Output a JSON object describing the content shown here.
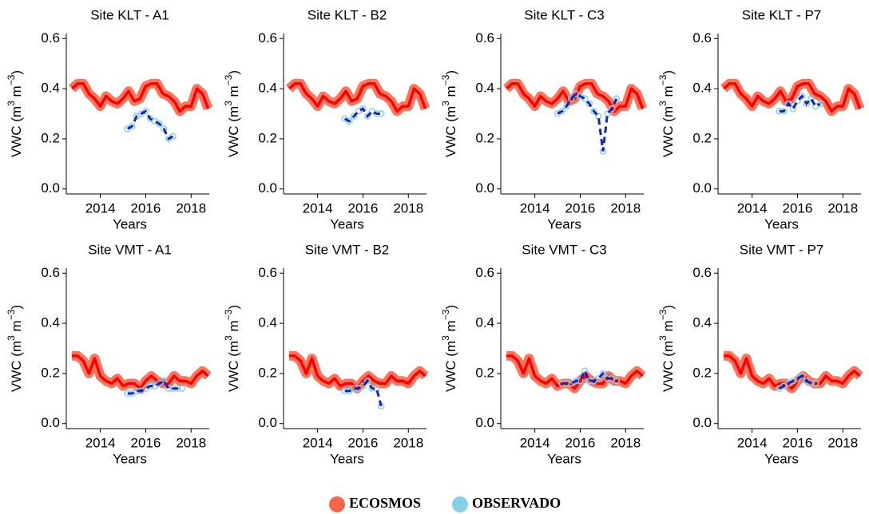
{
  "chart_data": [
    {
      "type": "line",
      "title": "Site KLT - A1",
      "xlabel": "Years",
      "ylabel": [
        "VWC (m",
        "3",
        " m",
        "−3",
        ")"
      ],
      "xlim": [
        2012.5,
        2018.8
      ],
      "xticks": [
        2014,
        2016,
        2018
      ],
      "ylim": [
        -0.02,
        0.62
      ],
      "yticks": [
        {
          "value": 0,
          "label": "0.0"
        },
        0.2,
        0.4,
        0.6
      ],
      "series": [
        {
          "name": "ECOSMOS",
          "color": "#f4664c",
          "line_color": "#ff0000",
          "x": [
            2012.75,
            2013,
            2013.25,
            2013.5,
            2013.75,
            2014,
            2014.25,
            2014.5,
            2014.75,
            2015,
            2015.25,
            2015.5,
            2015.75,
            2016,
            2016.25,
            2016.5,
            2016.75,
            2017,
            2017.25,
            2017.5,
            2017.75,
            2018,
            2018.25,
            2018.5,
            2018.75
          ],
          "values": [
            0.4,
            0.42,
            0.42,
            0.38,
            0.36,
            0.33,
            0.37,
            0.35,
            0.34,
            0.36,
            0.39,
            0.35,
            0.36,
            0.41,
            0.42,
            0.42,
            0.38,
            0.37,
            0.35,
            0.31,
            0.33,
            0.33,
            0.4,
            0.38,
            0.32
          ]
        },
        {
          "name": "OBSERVADO",
          "color": "#87ceeb",
          "line_color": "#1a23b0",
          "x": [
            2015.2,
            2015.4,
            2015.6,
            2015.8,
            2016,
            2016.2,
            2016.4,
            2016.6,
            2016.8,
            2017,
            2017.2
          ],
          "values": [
            0.24,
            0.25,
            0.29,
            0.3,
            0.31,
            0.28,
            0.27,
            0.26,
            0.24,
            0.2,
            0.21
          ]
        }
      ]
    },
    {
      "type": "line",
      "title": "Site KLT - B2",
      "xlabel": "Years",
      "ylabel": [
        "VWC (m",
        "3",
        " m",
        "−3",
        ")"
      ],
      "xlim": [
        2012.5,
        2018.8
      ],
      "xticks": [
        2014,
        2016,
        2018
      ],
      "ylim": [
        -0.02,
        0.62
      ],
      "yticks": [
        {
          "value": 0,
          "label": "0.0"
        },
        0.2,
        0.4,
        0.6
      ],
      "series": [
        {
          "name": "ECOSMOS",
          "color": "#f4664c",
          "line_color": "#ff0000",
          "x": [
            2012.75,
            2013,
            2013.25,
            2013.5,
            2013.75,
            2014,
            2014.25,
            2014.5,
            2014.75,
            2015,
            2015.25,
            2015.5,
            2015.75,
            2016,
            2016.25,
            2016.5,
            2016.75,
            2017,
            2017.25,
            2017.5,
            2017.75,
            2018,
            2018.25,
            2018.5,
            2018.75
          ],
          "values": [
            0.4,
            0.42,
            0.42,
            0.38,
            0.36,
            0.33,
            0.37,
            0.35,
            0.34,
            0.36,
            0.39,
            0.35,
            0.36,
            0.41,
            0.42,
            0.42,
            0.38,
            0.37,
            0.35,
            0.31,
            0.33,
            0.33,
            0.4,
            0.38,
            0.32
          ]
        },
        {
          "name": "OBSERVADO",
          "color": "#87ceeb",
          "line_color": "#1a23b0",
          "x": [
            2015.2,
            2015.4,
            2015.6,
            2015.8,
            2016,
            2016.2,
            2016.4,
            2016.6,
            2016.8
          ],
          "values": [
            0.28,
            0.27,
            0.29,
            0.31,
            0.32,
            0.29,
            0.31,
            0.3,
            0.3
          ]
        }
      ]
    },
    {
      "type": "line",
      "title": "Site KLT - C3",
      "xlabel": "Years",
      "ylabel": [
        "VWC (m",
        "3",
        " m",
        "−3",
        ")"
      ],
      "xlim": [
        2012.5,
        2018.8
      ],
      "xticks": [
        2014,
        2016,
        2018
      ],
      "ylim": [
        -0.02,
        0.62
      ],
      "yticks": [
        {
          "value": 0,
          "label": "0.0"
        },
        0.2,
        0.4,
        0.6
      ],
      "series": [
        {
          "name": "ECOSMOS",
          "color": "#f4664c",
          "line_color": "#ff0000",
          "x": [
            2012.75,
            2013,
            2013.25,
            2013.5,
            2013.75,
            2014,
            2014.25,
            2014.5,
            2014.75,
            2015,
            2015.25,
            2015.5,
            2015.75,
            2016,
            2016.25,
            2016.5,
            2016.75,
            2017,
            2017.25,
            2017.5,
            2017.75,
            2018,
            2018.25,
            2018.5,
            2018.75
          ],
          "values": [
            0.4,
            0.42,
            0.42,
            0.38,
            0.36,
            0.33,
            0.37,
            0.35,
            0.34,
            0.36,
            0.39,
            0.35,
            0.36,
            0.41,
            0.42,
            0.42,
            0.38,
            0.37,
            0.35,
            0.31,
            0.33,
            0.33,
            0.4,
            0.38,
            0.32
          ]
        },
        {
          "name": "OBSERVADO",
          "color": "#87ceeb",
          "line_color": "#1a23b0",
          "x": [
            2015,
            2015.2,
            2015.4,
            2015.6,
            2015.8,
            2016,
            2016.2,
            2016.4,
            2016.6,
            2016.8,
            2017,
            2017.2,
            2017.4,
            2017.6
          ],
          "values": [
            0.3,
            0.31,
            0.33,
            0.36,
            0.38,
            0.37,
            0.36,
            0.34,
            0.31,
            0.29,
            0.15,
            0.3,
            0.32,
            0.36
          ]
        }
      ]
    },
    {
      "type": "line",
      "title": "Site KLT - P7",
      "xlabel": "Years",
      "ylabel": [
        "VWC (m",
        "3",
        " m",
        "−3",
        ")"
      ],
      "xlim": [
        2012.5,
        2018.8
      ],
      "xticks": [
        2014,
        2016,
        2018
      ],
      "ylim": [
        -0.02,
        0.62
      ],
      "yticks": [
        {
          "value": 0,
          "label": "0.0"
        },
        0.2,
        0.4,
        0.6
      ],
      "series": [
        {
          "name": "ECOSMOS",
          "color": "#f4664c",
          "line_color": "#ff0000",
          "x": [
            2012.75,
            2013,
            2013.25,
            2013.5,
            2013.75,
            2014,
            2014.25,
            2014.5,
            2014.75,
            2015,
            2015.25,
            2015.5,
            2015.75,
            2016,
            2016.25,
            2016.5,
            2016.75,
            2017,
            2017.25,
            2017.5,
            2017.75,
            2018,
            2018.25,
            2018.5,
            2018.75
          ],
          "values": [
            0.4,
            0.42,
            0.42,
            0.38,
            0.36,
            0.33,
            0.37,
            0.35,
            0.34,
            0.36,
            0.39,
            0.35,
            0.36,
            0.41,
            0.42,
            0.42,
            0.38,
            0.37,
            0.35,
            0.31,
            0.33,
            0.33,
            0.4,
            0.38,
            0.32
          ]
        },
        {
          "name": "OBSERVADO",
          "color": "#87ceeb",
          "line_color": "#1a23b0",
          "x": [
            2015.2,
            2015.4,
            2015.6,
            2015.8,
            2016,
            2016.2,
            2016.4,
            2016.6,
            2016.8,
            2017
          ],
          "values": [
            0.31,
            0.31,
            0.34,
            0.32,
            0.35,
            0.37,
            0.34,
            0.36,
            0.33,
            0.34
          ]
        }
      ]
    },
    {
      "type": "line",
      "title": "Site VMT - A1",
      "xlabel": "Years",
      "ylabel": [
        "VWC (m",
        "3",
        " m",
        "−3",
        ")"
      ],
      "xlim": [
        2012.5,
        2018.8
      ],
      "xticks": [
        2014,
        2016,
        2018
      ],
      "ylim": [
        -0.02,
        0.62
      ],
      "yticks": [
        {
          "value": 0,
          "label": "0.0"
        },
        0.2,
        0.4,
        0.6
      ],
      "series": [
        {
          "name": "ECOSMOS",
          "color": "#f4664c",
          "line_color": "#ff0000",
          "x": [
            2012.75,
            2013,
            2013.25,
            2013.5,
            2013.75,
            2014,
            2014.25,
            2014.5,
            2014.75,
            2015,
            2015.25,
            2015.5,
            2015.75,
            2016,
            2016.25,
            2016.5,
            2016.75,
            2017,
            2017.25,
            2017.5,
            2017.75,
            2018,
            2018.25,
            2018.5,
            2018.75
          ],
          "values": [
            0.27,
            0.27,
            0.25,
            0.2,
            0.26,
            0.19,
            0.17,
            0.16,
            0.18,
            0.15,
            0.16,
            0.16,
            0.14,
            0.17,
            0.19,
            0.17,
            0.16,
            0.16,
            0.19,
            0.17,
            0.17,
            0.16,
            0.19,
            0.21,
            0.19
          ]
        },
        {
          "name": "OBSERVADO",
          "color": "#87ceeb",
          "line_color": "#1a23b0",
          "x": [
            2015.2,
            2015.4,
            2015.6,
            2015.8,
            2016,
            2016.2,
            2016.4,
            2016.6,
            2016.8,
            2017,
            2017.2,
            2017.4,
            2017.6
          ],
          "values": [
            0.12,
            0.12,
            0.13,
            0.13,
            0.14,
            0.15,
            0.15,
            0.16,
            0.17,
            0.14,
            0.14,
            0.14,
            0.14
          ]
        }
      ]
    },
    {
      "type": "line",
      "title": "Site VMT - B2",
      "xlabel": "Years",
      "ylabel": [
        "VWC (m",
        "3",
        " m",
        "−3",
        ")"
      ],
      "xlim": [
        2012.5,
        2018.8
      ],
      "xticks": [
        2014,
        2016,
        2018
      ],
      "ylim": [
        -0.02,
        0.62
      ],
      "yticks": [
        {
          "value": 0,
          "label": "0.0"
        },
        0.2,
        0.4,
        0.6
      ],
      "series": [
        {
          "name": "ECOSMOS",
          "color": "#f4664c",
          "line_color": "#ff0000",
          "x": [
            2012.75,
            2013,
            2013.25,
            2013.5,
            2013.75,
            2014,
            2014.25,
            2014.5,
            2014.75,
            2015,
            2015.25,
            2015.5,
            2015.75,
            2016,
            2016.25,
            2016.5,
            2016.75,
            2017,
            2017.25,
            2017.5,
            2017.75,
            2018,
            2018.25,
            2018.5,
            2018.75
          ],
          "values": [
            0.27,
            0.27,
            0.25,
            0.2,
            0.26,
            0.19,
            0.17,
            0.16,
            0.18,
            0.15,
            0.16,
            0.16,
            0.14,
            0.17,
            0.19,
            0.17,
            0.16,
            0.16,
            0.19,
            0.17,
            0.17,
            0.16,
            0.19,
            0.21,
            0.19
          ]
        },
        {
          "name": "OBSERVADO",
          "color": "#87ceeb",
          "line_color": "#1a23b0",
          "x": [
            2015.2,
            2015.4,
            2015.6,
            2015.8,
            2016,
            2016.2,
            2016.4,
            2016.6,
            2016.8
          ],
          "values": [
            0.13,
            0.13,
            0.14,
            0.14,
            0.15,
            0.17,
            0.14,
            0.14,
            0.07
          ]
        }
      ]
    },
    {
      "type": "line",
      "title": "Site VMT - C3",
      "xlabel": "Years",
      "ylabel": [
        "VWC (m",
        "3",
        " m",
        "−3",
        ")"
      ],
      "xlim": [
        2012.5,
        2018.8
      ],
      "xticks": [
        2014,
        2016,
        2018
      ],
      "ylim": [
        -0.02,
        0.62
      ],
      "yticks": [
        {
          "value": 0,
          "label": "0.0"
        },
        0.2,
        0.4,
        0.6
      ],
      "series": [
        {
          "name": "ECOSMOS",
          "color": "#f4664c",
          "line_color": "#ff0000",
          "x": [
            2012.75,
            2013,
            2013.25,
            2013.5,
            2013.75,
            2014,
            2014.25,
            2014.5,
            2014.75,
            2015,
            2015.25,
            2015.5,
            2015.75,
            2016,
            2016.25,
            2016.5,
            2016.75,
            2017,
            2017.25,
            2017.5,
            2017.75,
            2018,
            2018.25,
            2018.5,
            2018.75
          ],
          "values": [
            0.27,
            0.27,
            0.25,
            0.2,
            0.26,
            0.19,
            0.17,
            0.16,
            0.18,
            0.15,
            0.16,
            0.16,
            0.14,
            0.17,
            0.19,
            0.17,
            0.16,
            0.16,
            0.19,
            0.17,
            0.17,
            0.16,
            0.19,
            0.21,
            0.19
          ]
        },
        {
          "name": "OBSERVADO",
          "color": "#87ceeb",
          "line_color": "#1a23b0",
          "x": [
            2015.2,
            2015.4,
            2015.6,
            2015.8,
            2016,
            2016.2,
            2016.4,
            2016.6,
            2016.8,
            2017,
            2017.2,
            2017.4,
            2017.6
          ],
          "values": [
            0.16,
            0.16,
            0.16,
            0.17,
            0.17,
            0.21,
            0.17,
            0.17,
            0.18,
            0.2,
            0.18,
            0.18,
            0.17
          ]
        }
      ]
    },
    {
      "type": "line",
      "title": "Site VMT - P7",
      "xlabel": "Years",
      "ylabel": [
        "VWC (m",
        "3",
        " m",
        "−3",
        ")"
      ],
      "xlim": [
        2012.5,
        2018.8
      ],
      "xticks": [
        2014,
        2016,
        2018
      ],
      "ylim": [
        -0.02,
        0.62
      ],
      "yticks": [
        {
          "value": 0,
          "label": "0.0"
        },
        0.2,
        0.4,
        0.6
      ],
      "series": [
        {
          "name": "ECOSMOS",
          "color": "#f4664c",
          "line_color": "#ff0000",
          "x": [
            2012.75,
            2013,
            2013.25,
            2013.5,
            2013.75,
            2014,
            2014.25,
            2014.5,
            2014.75,
            2015,
            2015.25,
            2015.5,
            2015.75,
            2016,
            2016.25,
            2016.5,
            2016.75,
            2017,
            2017.25,
            2017.5,
            2017.75,
            2018,
            2018.25,
            2018.5,
            2018.75
          ],
          "values": [
            0.27,
            0.27,
            0.25,
            0.2,
            0.26,
            0.19,
            0.17,
            0.16,
            0.18,
            0.15,
            0.16,
            0.16,
            0.14,
            0.17,
            0.19,
            0.17,
            0.16,
            0.16,
            0.19,
            0.17,
            0.17,
            0.16,
            0.19,
            0.21,
            0.19
          ]
        },
        {
          "name": "OBSERVADO",
          "color": "#87ceeb",
          "line_color": "#1a23b0",
          "x": [
            2015.2,
            2015.4,
            2015.6,
            2015.8,
            2016,
            2016.2,
            2016.4,
            2016.6,
            2016.8
          ],
          "values": [
            0.14,
            0.15,
            0.16,
            0.17,
            0.18,
            0.19,
            0.17,
            0.16,
            0.16
          ]
        }
      ]
    }
  ]
}
